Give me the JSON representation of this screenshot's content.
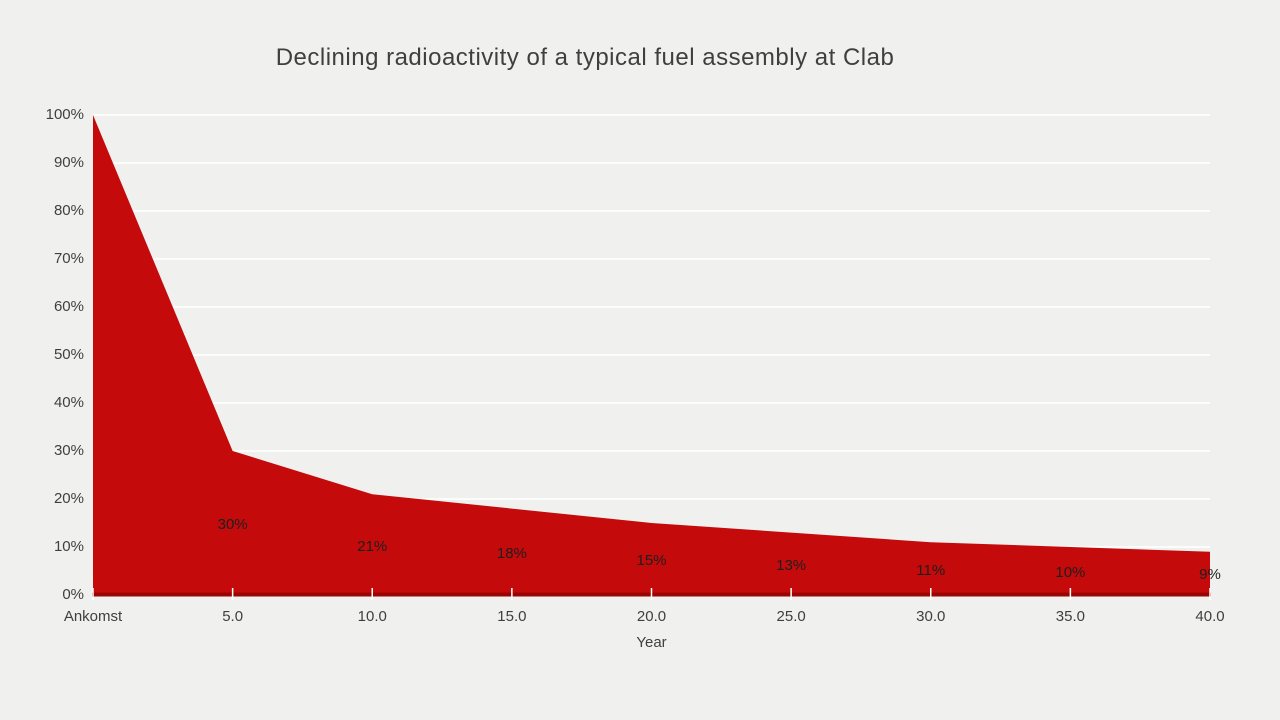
{
  "slide": {
    "background": "#F0F0EF"
  },
  "chart_data": {
    "type": "area",
    "title": "Declining radioactivity of a typical fuel assembly at Clab",
    "categories": [
      "Ankomst",
      "5.0",
      "10.0",
      "15.0",
      "20.0",
      "25.0",
      "30.0",
      "35.0",
      "40.0"
    ],
    "values": [
      100,
      30,
      21,
      18,
      15,
      13,
      11,
      10,
      9
    ],
    "data_labels": [
      "",
      "30%",
      "21%",
      "18%",
      "15%",
      "13%",
      "11%",
      "10%",
      "9%"
    ],
    "xlabel": "Year",
    "ylabel": "",
    "ylim": [
      0,
      100
    ],
    "ytick_step": 10,
    "ytick_labels": [
      "0%",
      "10%",
      "20%",
      "30%",
      "40%",
      "50%",
      "60%",
      "70%",
      "80%",
      "90%",
      "100%"
    ],
    "legend": "none",
    "grid": "horizontal",
    "colors": {
      "area_fill": "#C40A0A",
      "axis_line": "#9C0404",
      "gridline": "#FFFFFF",
      "tick": "#FFFFFF",
      "axis_text": "#3F3F3F",
      "data_label_text": "#1F1F1F",
      "title_text": "#3F3F3F",
      "background": "#F0F0EF"
    }
  }
}
